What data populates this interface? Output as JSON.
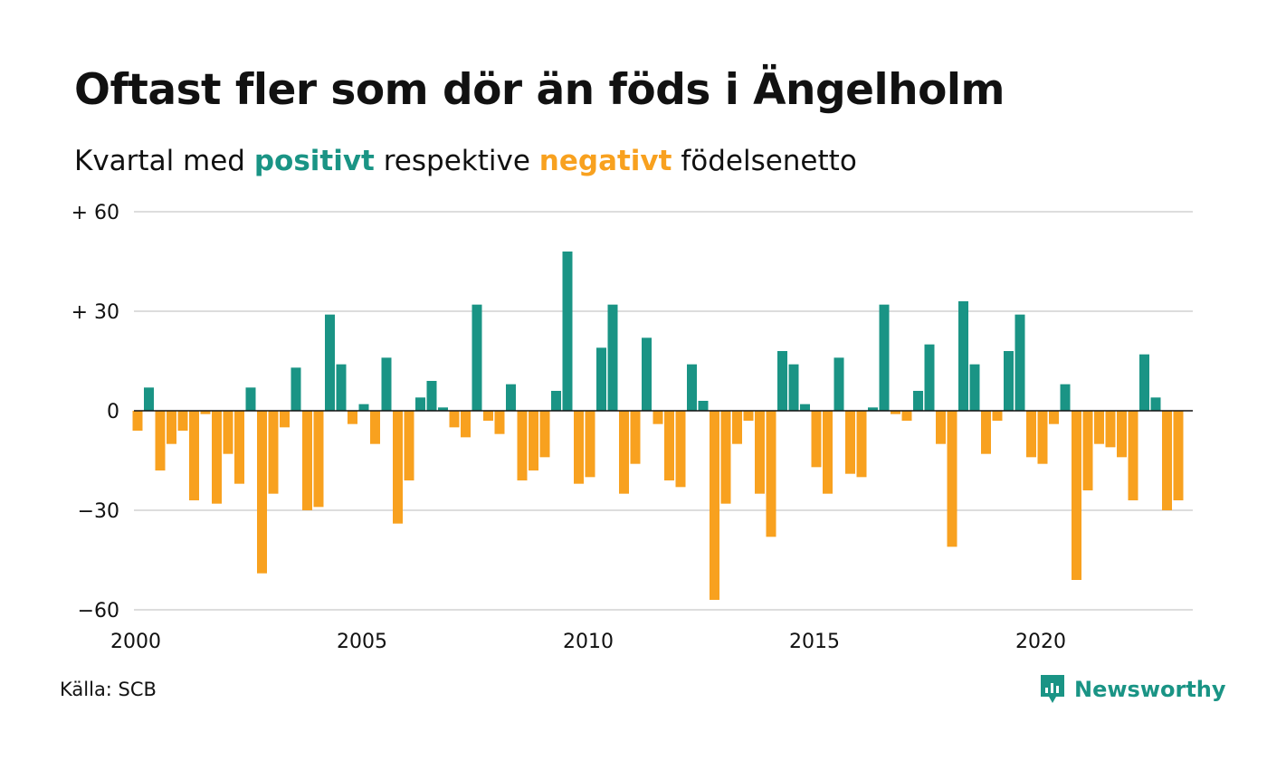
{
  "title": "Oftast fler som dör än föds i Ängelholm",
  "subtitle": {
    "prefix": "Kvartal med ",
    "positive_word": "positivt",
    "middle": " respektive ",
    "negative_word": "negativt",
    "suffix": " födelsenetto"
  },
  "source": "Källa: SCB",
  "brand": "Newsworthy",
  "colors": {
    "positive": "#1a9485",
    "negative": "#f8a11f",
    "grid": "#dddddd",
    "zero_line": "#111111",
    "text": "#111111",
    "brand": "#1a9485"
  },
  "chart_data": {
    "type": "bar",
    "quarters_per_year": 4,
    "start": "2000 Q1",
    "values": [
      -6,
      7,
      -18,
      -10,
      -6,
      -27,
      -1,
      -28,
      -13,
      -22,
      7,
      -49,
      -25,
      -5,
      13,
      -30,
      -29,
      29,
      14,
      -4,
      2,
      -10,
      16,
      -34,
      -21,
      4,
      9,
      1,
      -5,
      -8,
      32,
      -3,
      -7,
      8,
      -21,
      -18,
      -14,
      6,
      48,
      -22,
      -20,
      19,
      32,
      -25,
      -16,
      22,
      -4,
      -21,
      -23,
      14,
      3,
      -57,
      -28,
      -10,
      -3,
      -25,
      -38,
      18,
      14,
      2,
      -17,
      -25,
      16,
      -19,
      -20,
      1,
      32,
      -1,
      -3,
      6,
      20,
      -10,
      -41,
      33,
      14,
      -13,
      -3,
      18,
      29,
      -14,
      -16,
      -4,
      8,
      -51,
      -24,
      -10,
      -11,
      -14,
      -27,
      17,
      4,
      -30,
      -27
    ],
    "xticks": [
      "2000",
      "2005",
      "2010",
      "2015",
      "2020"
    ],
    "yticks": [
      "+ 60",
      "+ 30",
      "0",
      "−30",
      "−60"
    ],
    "ytick_values": [
      60,
      30,
      0,
      -30,
      -60
    ],
    "ylim": [
      -60,
      60
    ],
    "grid": true,
    "xlabel": "",
    "ylabel": ""
  }
}
